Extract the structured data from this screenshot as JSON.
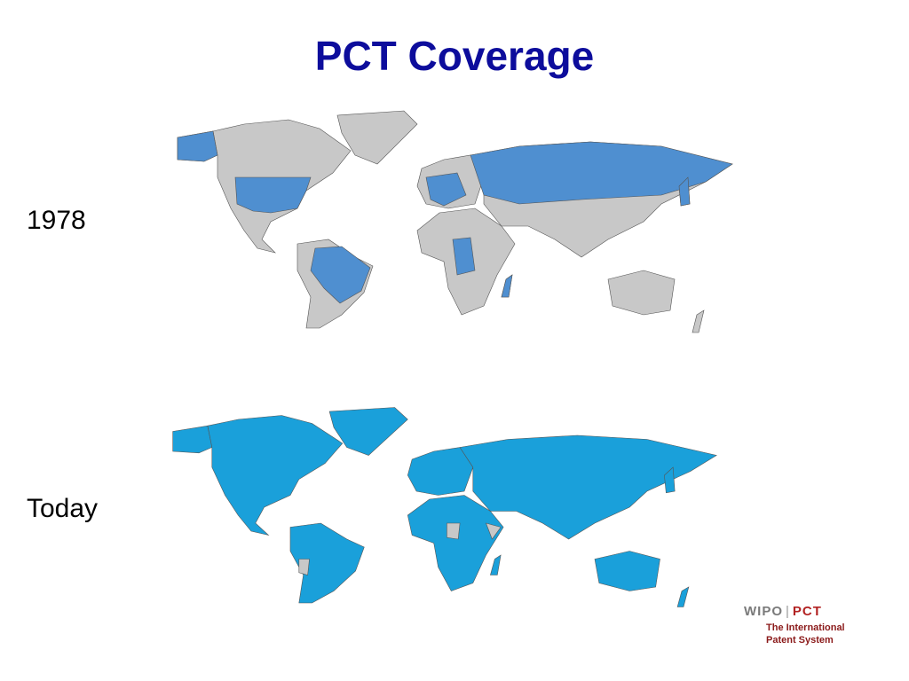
{
  "header": {
    "title": "PCT Coverage"
  },
  "maps": [
    {
      "label": "1978"
    },
    {
      "label": "Today"
    }
  ],
  "logo": {
    "wipo": "WIPO",
    "pct": "PCT",
    "line1": "The International",
    "line2": "Patent System"
  }
}
